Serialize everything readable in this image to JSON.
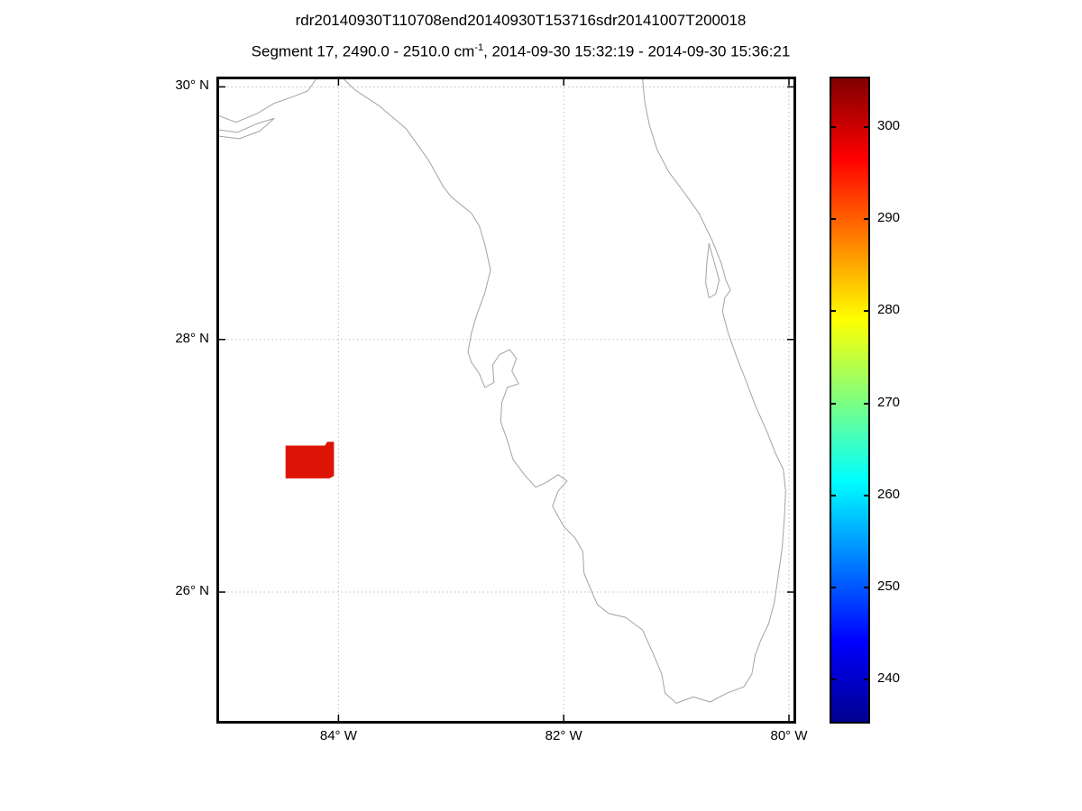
{
  "figure": {
    "title": "rdr20140930T110708end20140930T153716sdr20141007T200018",
    "subtitle_prefix": "Segment 17, 2490.0 - 2510.0 cm",
    "subtitle_sup": "-1",
    "subtitle_suffix": ", 2014-09-30 15:32:19 - 2014-09-30 15:36:21"
  },
  "axes": {
    "lat_labels": [
      "30° N",
      "28° N",
      "26° N"
    ],
    "lon_labels": [
      "84° W",
      "82° W",
      "80° W"
    ]
  },
  "chart_data": {
    "type": "map",
    "title": "rdr20140930T110708end20140930T153716sdr20141007T200018",
    "subtitle": "Segment 17, 2490.0 - 2510.0 cm^-1, 2014-09-30 15:32:19 - 2014-09-30 15:36:21",
    "projection": {
      "lon_range": [
        -85.06,
        -79.96
      ],
      "lat_range": [
        24.98,
        30.06
      ]
    },
    "grid": {
      "lat_ticks": [
        30,
        28,
        26
      ],
      "lon_ticks": [
        -84,
        -82,
        -80
      ],
      "style": "dotted"
    },
    "colorbar": {
      "range": [
        235.4,
        305.3
      ],
      "ticks": [
        300,
        290,
        280,
        270,
        260,
        250,
        240
      ],
      "colormap": "jet",
      "position": "right"
    },
    "data_patch": {
      "description": "satellite granule footprint",
      "lon_min": -84.47,
      "lon_max": -84.04,
      "lat_min": 26.9,
      "lat_max": 27.19,
      "approx_value": 300,
      "color": "#dd1405",
      "points": [
        [
          -84.47,
          26.9
        ],
        [
          -84.47,
          27.16
        ],
        [
          -84.12,
          27.16
        ],
        [
          -84.1,
          27.19
        ],
        [
          -84.04,
          27.19
        ],
        [
          -84.04,
          26.92
        ],
        [
          -84.08,
          26.9
        ]
      ]
    },
    "coastlines": [
      {
        "name": "florida-peninsula",
        "closed": false,
        "points": [
          [
            -83.95,
            30.06
          ],
          [
            -83.86,
            29.98
          ],
          [
            -83.64,
            29.85
          ],
          [
            -83.4,
            29.67
          ],
          [
            -83.2,
            29.42
          ],
          [
            -83.07,
            29.21
          ],
          [
            -83.0,
            29.13
          ],
          [
            -82.82,
            29.0
          ],
          [
            -82.75,
            28.9
          ],
          [
            -82.7,
            28.75
          ],
          [
            -82.65,
            28.55
          ],
          [
            -82.7,
            28.37
          ],
          [
            -82.77,
            28.2
          ],
          [
            -82.82,
            28.05
          ],
          [
            -82.85,
            27.9
          ],
          [
            -82.82,
            27.82
          ],
          [
            -82.75,
            27.73
          ],
          [
            -82.7,
            27.62
          ],
          [
            -82.62,
            27.66
          ],
          [
            -82.63,
            27.8
          ],
          [
            -82.57,
            27.88
          ],
          [
            -82.48,
            27.92
          ],
          [
            -82.42,
            27.85
          ],
          [
            -82.46,
            27.75
          ],
          [
            -82.4,
            27.65
          ],
          [
            -82.5,
            27.62
          ],
          [
            -82.55,
            27.5
          ],
          [
            -82.56,
            27.35
          ],
          [
            -82.5,
            27.2
          ],
          [
            -82.45,
            27.05
          ],
          [
            -82.35,
            26.93
          ],
          [
            -82.25,
            26.83
          ],
          [
            -82.15,
            26.87
          ],
          [
            -82.05,
            26.93
          ],
          [
            -81.97,
            26.88
          ],
          [
            -82.05,
            26.8
          ],
          [
            -82.1,
            26.68
          ],
          [
            -82.0,
            26.52
          ],
          [
            -81.9,
            26.43
          ],
          [
            -81.83,
            26.32
          ],
          [
            -81.82,
            26.15
          ],
          [
            -81.75,
            26.0
          ],
          [
            -81.7,
            25.9
          ],
          [
            -81.6,
            25.83
          ],
          [
            -81.45,
            25.8
          ],
          [
            -81.3,
            25.7
          ],
          [
            -81.2,
            25.5
          ],
          [
            -81.13,
            25.35
          ],
          [
            -81.1,
            25.2
          ],
          [
            -81.0,
            25.12
          ],
          [
            -80.85,
            25.17
          ],
          [
            -80.7,
            25.13
          ],
          [
            -80.55,
            25.2
          ],
          [
            -80.4,
            25.25
          ],
          [
            -80.33,
            25.35
          ],
          [
            -80.3,
            25.5
          ],
          [
            -80.25,
            25.62
          ],
          [
            -80.18,
            25.75
          ],
          [
            -80.13,
            25.92
          ],
          [
            -80.1,
            26.1
          ],
          [
            -80.06,
            26.35
          ],
          [
            -80.04,
            26.6
          ],
          [
            -80.03,
            26.8
          ],
          [
            -80.05,
            26.97
          ],
          [
            -80.12,
            27.1
          ],
          [
            -80.2,
            27.28
          ],
          [
            -80.3,
            27.48
          ],
          [
            -80.38,
            27.67
          ],
          [
            -80.46,
            27.85
          ],
          [
            -80.54,
            28.05
          ],
          [
            -80.59,
            28.22
          ],
          [
            -80.57,
            28.33
          ],
          [
            -80.52,
            28.39
          ],
          [
            -80.56,
            28.47
          ],
          [
            -80.6,
            28.6
          ],
          [
            -80.68,
            28.78
          ],
          [
            -80.8,
            29.0
          ],
          [
            -80.92,
            29.15
          ],
          [
            -81.07,
            29.33
          ],
          [
            -81.17,
            29.5
          ],
          [
            -81.24,
            29.7
          ],
          [
            -81.28,
            29.88
          ],
          [
            -81.3,
            30.06
          ]
        ]
      },
      {
        "name": "panhandle-coast",
        "closed": false,
        "points": [
          [
            -85.06,
            29.77
          ],
          [
            -84.91,
            29.72
          ],
          [
            -84.72,
            29.79
          ],
          [
            -84.57,
            29.87
          ],
          [
            -84.38,
            29.93
          ],
          [
            -84.27,
            29.97
          ],
          [
            -84.2,
            30.06
          ]
        ]
      },
      {
        "name": "barrier-island",
        "closed": false,
        "points": [
          [
            -85.06,
            29.61
          ],
          [
            -84.88,
            29.59
          ],
          [
            -84.7,
            29.65
          ],
          [
            -84.57,
            29.75
          ],
          [
            -84.72,
            29.71
          ],
          [
            -84.9,
            29.64
          ],
          [
            -85.06,
            29.66
          ]
        ]
      },
      {
        "name": "merritt-island-lagoon",
        "closed": true,
        "points": [
          [
            -80.71,
            28.76
          ],
          [
            -80.66,
            28.6
          ],
          [
            -80.62,
            28.47
          ],
          [
            -80.65,
            28.36
          ],
          [
            -80.71,
            28.33
          ],
          [
            -80.74,
            28.45
          ],
          [
            -80.73,
            28.6
          ]
        ]
      }
    ]
  }
}
